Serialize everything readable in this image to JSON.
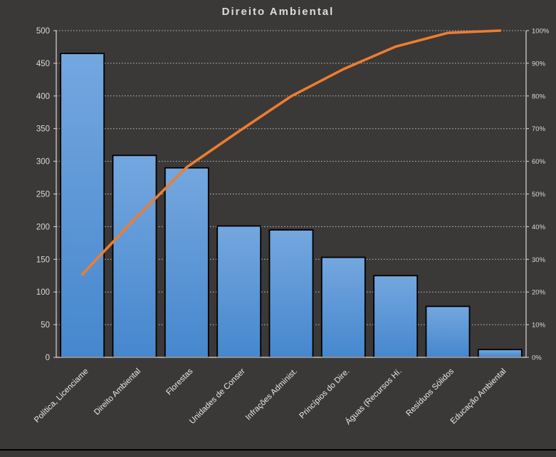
{
  "chart": {
    "title": "Direito Ambiental"
  },
  "chart_data": {
    "type": "pareto",
    "title": "Direito Ambiental",
    "categories": [
      "Política, Licenciame",
      "Direito Ambiental",
      "Florestas",
      "Unidades de Conser",
      "Infrações Administ.",
      "Princípios do Dire.",
      "Águas (Recursos Hí.",
      "Resíduos Sólidos",
      "Educação Ambiental"
    ],
    "series": [
      {
        "name": "bars",
        "type": "bar",
        "values": [
          465,
          309,
          290,
          201,
          195,
          153,
          125,
          78,
          12
        ]
      },
      {
        "name": "cumulative-line",
        "type": "line",
        "values": [
          25.4,
          42.3,
          58.2,
          69.2,
          79.9,
          88.2,
          95.1,
          99.3,
          100.0
        ]
      }
    ],
    "left_axis": {
      "min": 0,
      "max": 500,
      "step": 50,
      "tick_labels": [
        "0",
        "50",
        "100",
        "150",
        "200",
        "250",
        "300",
        "350",
        "400",
        "450",
        "500"
      ]
    },
    "right_axis": {
      "min": 0,
      "max": 100,
      "step": 10,
      "tick_labels": [
        "0%",
        "10%",
        "20%",
        "30%",
        "40%",
        "50%",
        "60%",
        "70%",
        "80%",
        "90%",
        "100%"
      ]
    },
    "grid": "dotted-horizontal",
    "legend": "none",
    "colors": {
      "background": "#3B3838",
      "bar_fill_top": "#74A7DF",
      "bar_fill_bottom": "#4687CD",
      "bar_border": "#000000",
      "line": "#ED7D31",
      "axis": "#D9D9D9",
      "grid": "#CCCACA",
      "tick_text": "#D9D9D9",
      "category_text": "#E8E8E8",
      "title_text": "#DCDCDC",
      "bottom_border": "#000000"
    }
  }
}
